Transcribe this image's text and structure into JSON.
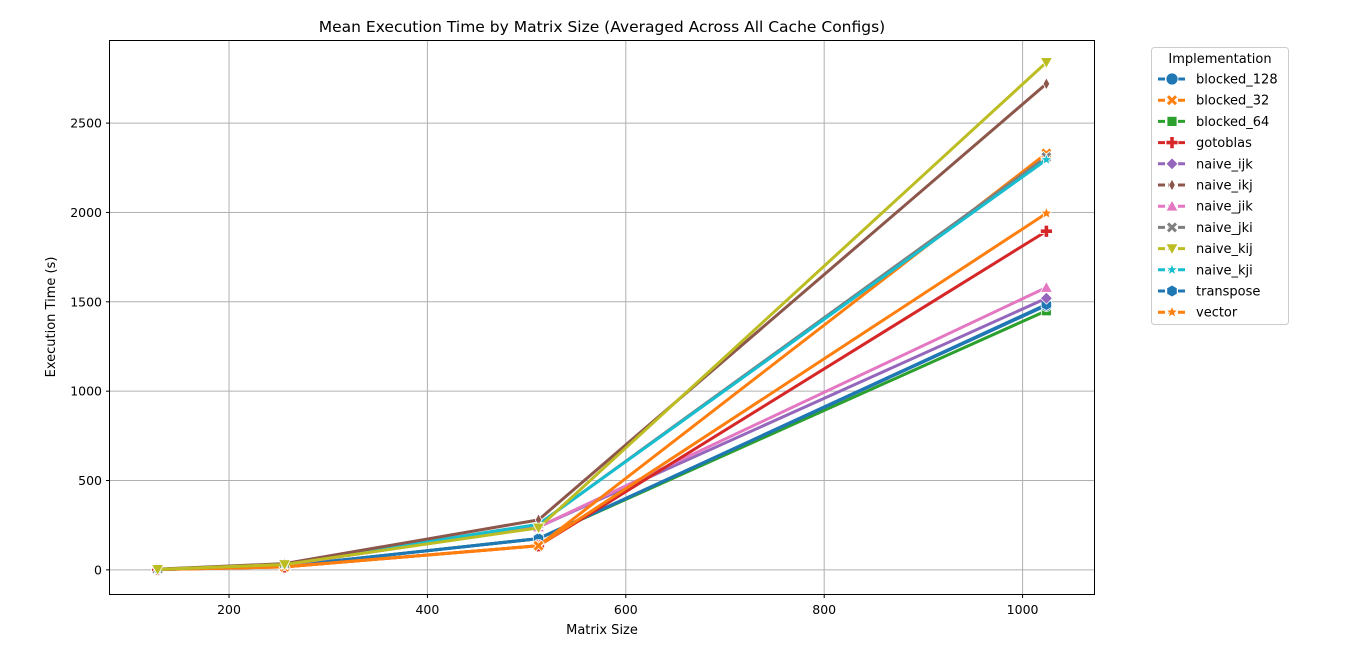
{
  "chart_data": {
    "type": "line",
    "title": "Mean Execution Time by Matrix Size (Averaged Across All Cache Configs)",
    "xlabel": "Matrix Size",
    "ylabel": "Execution Time (s)",
    "xlim": [
      80,
      1072
    ],
    "ylim": [
      -135,
      2965
    ],
    "xticks": [
      200,
      400,
      600,
      800,
      1000
    ],
    "yticks": [
      0,
      500,
      1000,
      1500,
      2000,
      2500
    ],
    "grid": true,
    "legend": {
      "title": "Implementation",
      "placement": "outside-right"
    },
    "x": [
      128,
      256,
      512,
      1024
    ],
    "series": [
      {
        "name": "blocked_128",
        "color": "#1f77b4",
        "marker": "circle",
        "values": [
          2,
          20,
          175,
          1480
        ]
      },
      {
        "name": "blocked_32",
        "color": "#ff7f0e",
        "marker": "x",
        "values": [
          2,
          17,
          135,
          2330
        ]
      },
      {
        "name": "blocked_64",
        "color": "#2ca02c",
        "marker": "square",
        "values": [
          2,
          20,
          175,
          1450
        ]
      },
      {
        "name": "gotoblas",
        "color": "#d62728",
        "marker": "plus",
        "values": [
          2,
          17,
          135,
          1895
        ]
      },
      {
        "name": "naive_ijk",
        "color": "#9467bd",
        "marker": "diamond",
        "values": [
          3,
          28,
          240,
          1520
        ]
      },
      {
        "name": "naive_ikj",
        "color": "#8c564b",
        "marker": "thin-diamond",
        "values": [
          4,
          35,
          280,
          2720
        ]
      },
      {
        "name": "naive_jik",
        "color": "#e377c2",
        "marker": "triangle-up",
        "values": [
          3,
          28,
          240,
          1580
        ]
      },
      {
        "name": "naive_jki",
        "color": "#7f7f7f",
        "marker": "x-filled",
        "values": [
          3,
          32,
          255,
          2310
        ]
      },
      {
        "name": "naive_kij",
        "color": "#bcbd22",
        "marker": "triangle-down",
        "values": [
          3,
          30,
          235,
          2840
        ]
      },
      {
        "name": "naive_kji",
        "color": "#17becf",
        "marker": "star",
        "values": [
          3,
          32,
          255,
          2295
        ]
      },
      {
        "name": "transpose",
        "color": "#1f77b4",
        "marker": "hexagon",
        "values": [
          2,
          20,
          175,
          1485
        ]
      },
      {
        "name": "vector",
        "color": "#ff7f0e",
        "marker": "pentagon-star",
        "values": [
          2,
          17,
          135,
          1995
        ]
      }
    ]
  }
}
